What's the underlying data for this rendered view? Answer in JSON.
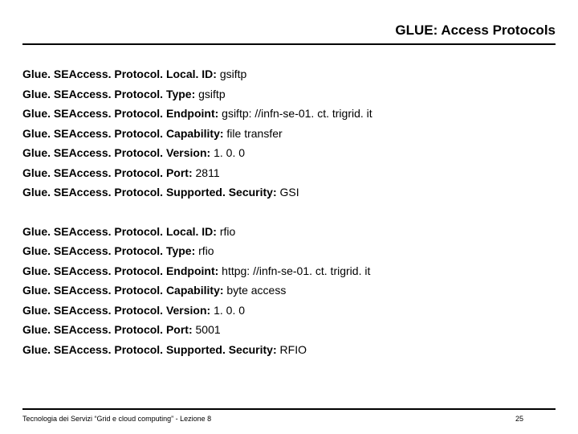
{
  "title": "GLUE: Access Protocols",
  "blocks": [
    {
      "rows": [
        {
          "label": "Glue. SEAccess. Protocol. Local. ID",
          "value": "gsiftp"
        },
        {
          "label": "Glue. SEAccess. Protocol. Type",
          "value": "gsiftp"
        },
        {
          "label": "Glue. SEAccess. Protocol. Endpoint",
          "value": "gsiftp: //infn-se-01. ct. trigrid. it"
        },
        {
          "label": "Glue. SEAccess. Protocol. Capability",
          "value": "file transfer"
        },
        {
          "label": "Glue. SEAccess. Protocol. Version",
          "value": "1. 0. 0"
        },
        {
          "label": "Glue. SEAccess. Protocol. Port",
          "value": "2811"
        },
        {
          "label": "Glue. SEAccess. Protocol. Supported. Security",
          "value": "GSI"
        }
      ]
    },
    {
      "rows": [
        {
          "label": "Glue. SEAccess. Protocol. Local. ID",
          "value": "rfio"
        },
        {
          "label": "Glue. SEAccess. Protocol. Type",
          "value": "rfio"
        },
        {
          "label": "Glue. SEAccess. Protocol. Endpoint",
          "value": "httpg: //infn-se-01. ct. trigrid. it"
        },
        {
          "label": "Glue. SEAccess. Protocol. Capability",
          "value": "byte access"
        },
        {
          "label": "Glue. SEAccess. Protocol. Version",
          "value": "1. 0. 0"
        },
        {
          "label": "Glue. SEAccess. Protocol. Port",
          "value": "5001"
        },
        {
          "label": "Glue. SEAccess. Protocol. Supported. Security",
          "value": "RFIO"
        }
      ]
    }
  ],
  "footer": {
    "left": "Tecnologia dei Servizi “Grid e cloud computing” - Lezione 8",
    "page": "25"
  }
}
